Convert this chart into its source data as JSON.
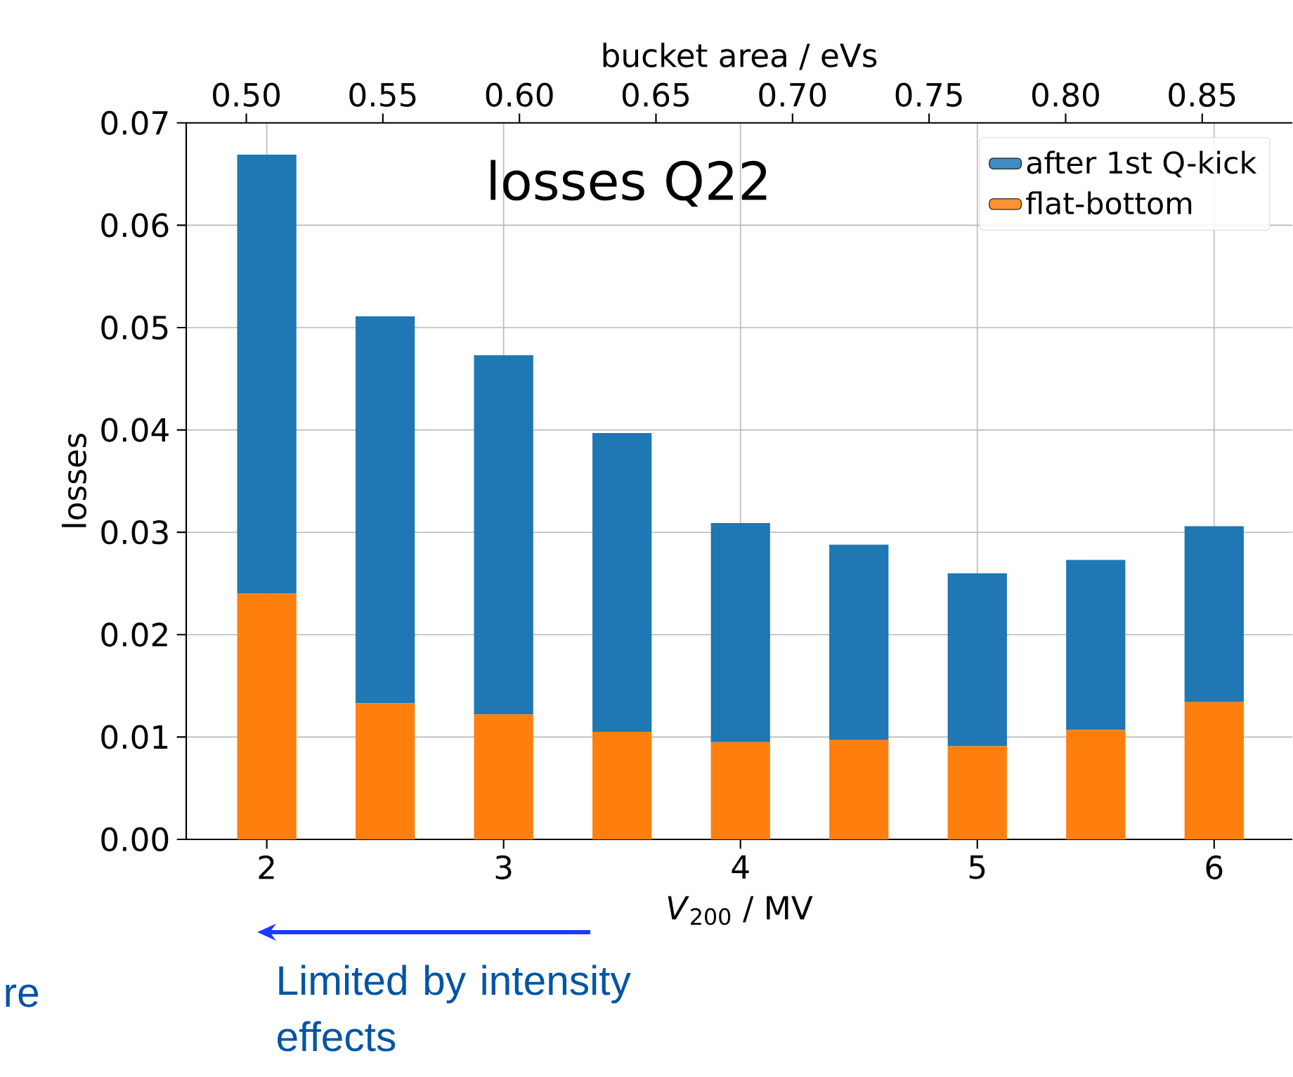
{
  "chart_data": {
    "type": "bar",
    "stacked": true,
    "title": "losses Q22",
    "xlabel": "*V*$_{200}$ / MV",
    "ylabel": "losses",
    "x2label": "bucket area / eVs",
    "x": [
      2,
      2.5,
      3,
      3.5,
      4,
      4.5,
      5,
      5.5,
      6
    ],
    "series": [
      {
        "name": "flat-bottom",
        "color": "#ff7f0e",
        "values": [
          0.024,
          0.0133,
          0.0122,
          0.0105,
          0.0095,
          0.0097,
          0.0091,
          0.0107,
          0.0134
        ]
      },
      {
        "name": "after 1st Q-kick",
        "color": "#1f77b4",
        "values": [
          0.0429,
          0.0378,
          0.0351,
          0.0292,
          0.0214,
          0.0191,
          0.0169,
          0.0166,
          0.0172
        ]
      }
    ],
    "xlim": [
      1.66,
      6.33
    ],
    "xticks": [
      2,
      3,
      4,
      5,
      6
    ],
    "ylim": [
      0,
      0.07
    ],
    "yticks": [
      {
        "value": 0,
        "label": "0.00"
      },
      {
        "value": 0.01,
        "label": "0.01"
      },
      {
        "value": 0.02,
        "label": "0.02"
      },
      {
        "value": 0.03,
        "label": "0.03"
      },
      {
        "value": 0.04,
        "label": "0.04"
      },
      {
        "value": 0.05,
        "label": "0.05"
      },
      {
        "value": 0.06,
        "label": "0.06"
      },
      {
        "value": 0.07,
        "label": "0.07"
      }
    ],
    "x2lim": [
      0.478,
      0.883
    ],
    "x2ticks": [
      {
        "value": 0.5,
        "label": "0.50"
      },
      {
        "value": 0.55,
        "label": "0.55"
      },
      {
        "value": 0.6,
        "label": "0.60"
      },
      {
        "value": 0.65,
        "label": "0.65"
      },
      {
        "value": 0.7,
        "label": "0.70"
      },
      {
        "value": 0.75,
        "label": "0.75"
      },
      {
        "value": 0.8,
        "label": "0.80"
      },
      {
        "value": 0.85,
        "label": "0.85"
      }
    ],
    "grid": true,
    "legend": "top right",
    "annotations": [
      "Limited by intensity effects",
      "re"
    ]
  }
}
